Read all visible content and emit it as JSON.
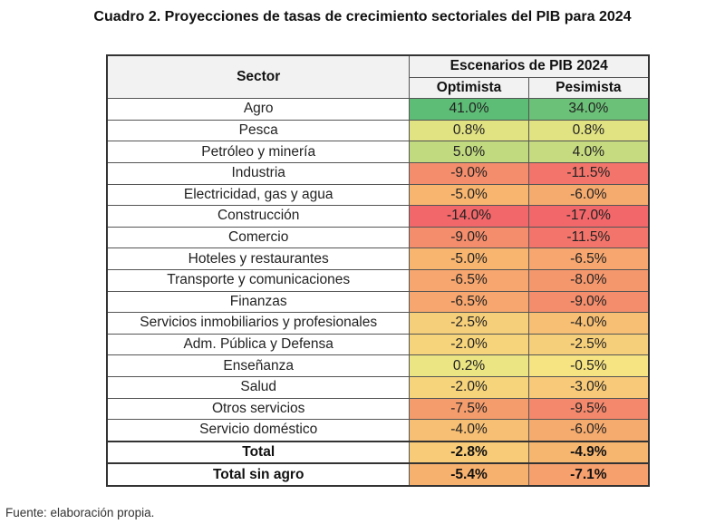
{
  "title": "Cuadro 2. Proyecciones de tasas de crecimiento sectoriales del PIB para 2024",
  "header": {
    "sector": "Sector",
    "group": "Escenarios de PIB 2024",
    "optimista": "Optimista",
    "pesimista": "Pesimista"
  },
  "rows": [
    {
      "sector": "Agro",
      "optimista": "41.0%",
      "pesimista": "34.0%"
    },
    {
      "sector": "Pesca",
      "optimista": "0.8%",
      "pesimista": "0.8%"
    },
    {
      "sector": "Petróleo y minería",
      "optimista": "5.0%",
      "pesimista": "4.0%"
    },
    {
      "sector": "Industria",
      "optimista": "-9.0%",
      "pesimista": "-11.5%"
    },
    {
      "sector": "Electricidad, gas y agua",
      "optimista": "-5.0%",
      "pesimista": "-6.0%"
    },
    {
      "sector": "Construcción",
      "optimista": "-14.0%",
      "pesimista": "-17.0%"
    },
    {
      "sector": "Comercio",
      "optimista": "-9.0%",
      "pesimista": "-11.5%"
    },
    {
      "sector": "Hoteles y restaurantes",
      "optimista": "-5.0%",
      "pesimista": "-6.5%"
    },
    {
      "sector": "Transporte y comunicaciones",
      "optimista": "-6.5%",
      "pesimista": "-8.0%"
    },
    {
      "sector": "Finanzas",
      "optimista": "-6.5%",
      "pesimista": "-9.0%"
    },
    {
      "sector": "Servicios inmobiliarios y profesionales",
      "optimista": "-2.5%",
      "pesimista": "-4.0%"
    },
    {
      "sector": "Adm. Pública y Defensa",
      "optimista": "-2.0%",
      "pesimista": "-2.5%"
    },
    {
      "sector": "Enseñanza",
      "optimista": "0.2%",
      "pesimista": "-0.5%"
    },
    {
      "sector": "Salud",
      "optimista": "-2.0%",
      "pesimista": "-3.0%"
    },
    {
      "sector": "Otros servicios",
      "optimista": "-7.5%",
      "pesimista": "-9.5%"
    },
    {
      "sector": "Servicio doméstico",
      "optimista": "-4.0%",
      "pesimista": "-6.0%"
    }
  ],
  "totals": [
    {
      "sector": "Total",
      "optimista": "-2.8%",
      "pesimista": "-4.9%"
    },
    {
      "sector": "Total sin agro",
      "optimista": "-5.4%",
      "pesimista": "-7.1%"
    }
  ],
  "colors": {
    "green": "#5dbd76",
    "yellow": "#f6e884",
    "orange": "#f7b46f",
    "red": "#f2676a"
  },
  "source": "Fuente: elaboración propia."
}
